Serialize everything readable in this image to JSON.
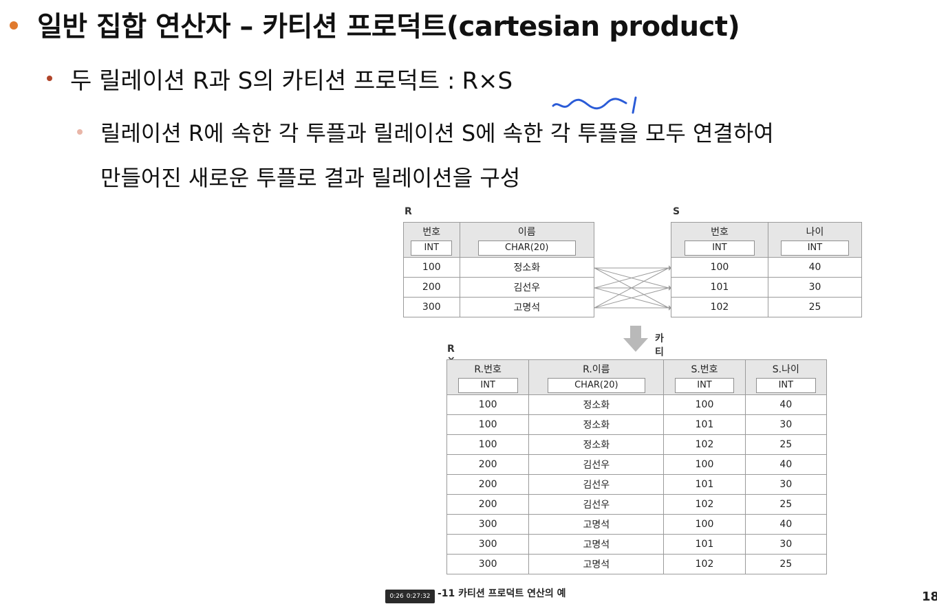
{
  "title": "일반 집합 연산자 – 카티션 프로덕트(cartesian product)",
  "subtitle": {
    "text": "두 릴레이션 R과 S의 카티션 프로덕트 :",
    "expr": "R×S"
  },
  "description": {
    "line1": "릴레이션 R에 속한 각 투플과 릴레이션 S에 속한 각 투플을 모두 연결하여",
    "line2": "만들어진 새로운 투플로 결과 릴레이션을 구성"
  },
  "figure": {
    "r_label": "R",
    "s_label": "S",
    "rs_label": "R × S",
    "operation_label": "카티션 프로덕트 연산",
    "caption": "-11  카티션 프로덕트 연산의 예",
    "R": {
      "columns": [
        {
          "name": "번호",
          "type": "INT"
        },
        {
          "name": "이름",
          "type": "CHAR(20)"
        }
      ],
      "rows": [
        [
          "100",
          "정소화"
        ],
        [
          "200",
          "김선우"
        ],
        [
          "300",
          "고명석"
        ]
      ]
    },
    "S": {
      "columns": [
        {
          "name": "번호",
          "type": "INT"
        },
        {
          "name": "나이",
          "type": "INT"
        }
      ],
      "rows": [
        [
          "100",
          "40"
        ],
        [
          "101",
          "30"
        ],
        [
          "102",
          "25"
        ]
      ]
    },
    "RxS": {
      "columns": [
        {
          "name": "R.번호",
          "type": "INT"
        },
        {
          "name": "R.이름",
          "type": "CHAR(20)"
        },
        {
          "name": "S.번호",
          "type": "INT"
        },
        {
          "name": "S.나이",
          "type": "INT"
        }
      ],
      "rows": [
        [
          "100",
          "정소화",
          "100",
          "40"
        ],
        [
          "100",
          "정소화",
          "101",
          "30"
        ],
        [
          "100",
          "정소화",
          "102",
          "25"
        ],
        [
          "200",
          "김선우",
          "100",
          "40"
        ],
        [
          "200",
          "김선우",
          "101",
          "30"
        ],
        [
          "200",
          "김선우",
          "102",
          "25"
        ],
        [
          "300",
          "고명석",
          "100",
          "40"
        ],
        [
          "300",
          "고명석",
          "101",
          "30"
        ],
        [
          "300",
          "고명석",
          "102",
          "25"
        ]
      ]
    }
  },
  "player": {
    "time": "0:26",
    "duration": "0:27:32"
  },
  "page_number": "18",
  "colors": {
    "bullet_primary": "#e07a2e",
    "bullet_secondary": "#b0452a",
    "bullet_tertiary": "#e9b6a8",
    "annotation": "#2a5bd7",
    "header_bg": "#e6e6e6"
  }
}
